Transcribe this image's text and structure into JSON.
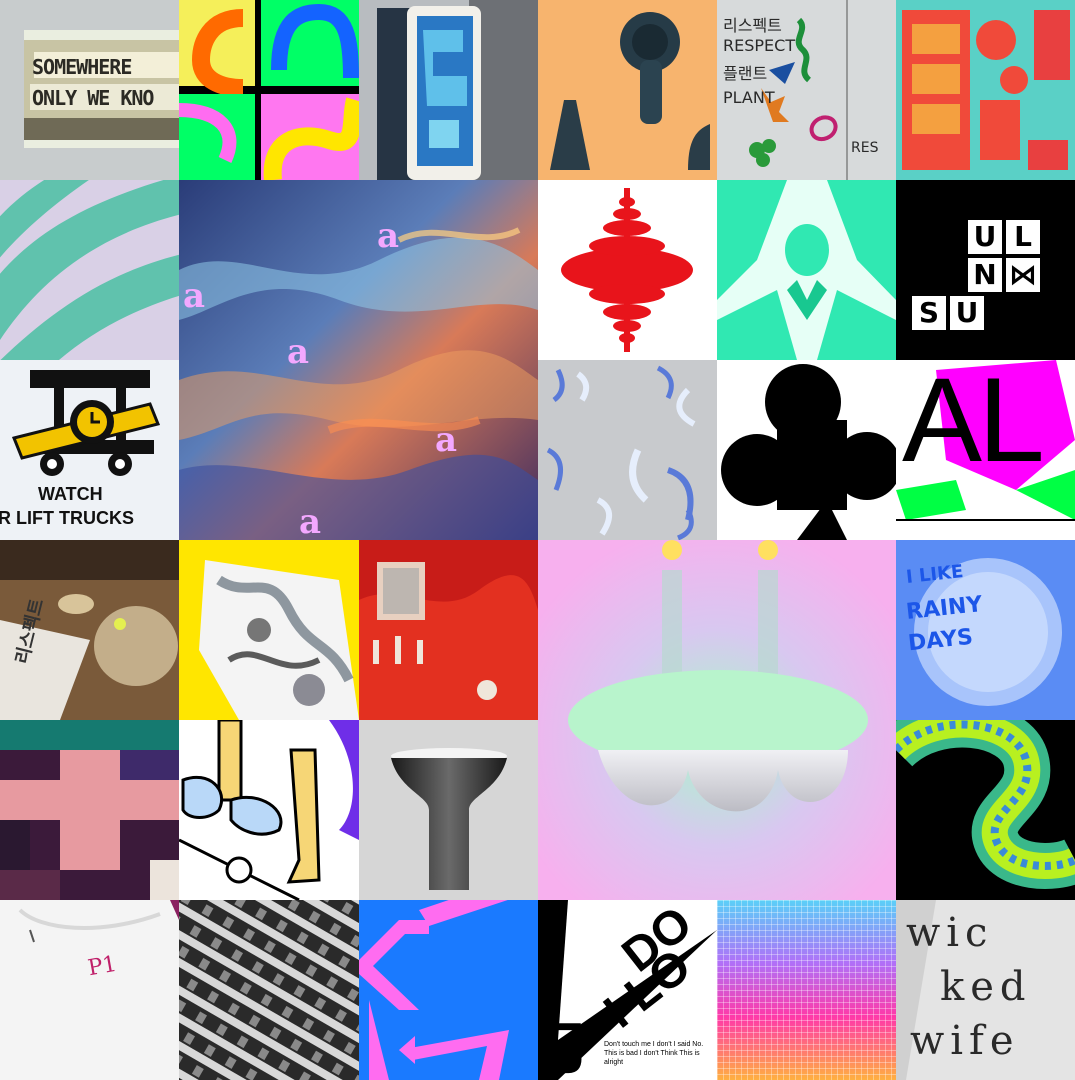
{
  "tiles": {
    "somewhere": {
      "line1": "SOMEWHERE",
      "line2": "ONLY WE KNO"
    },
    "respect_poster": {
      "l1": "리스펙트",
      "l2": "RESPECT",
      "l3": "플랜트",
      "l4": "PLANT",
      "side": "리스펙트 플랜트",
      "small": "RES"
    },
    "ulnmsu": {
      "c1": "U",
      "c2": "L",
      "c3": "N",
      "c4": "⋈",
      "c5": "S",
      "c6": "U"
    },
    "watch": {
      "line1": "WATCH",
      "line2": "R LIFT TRUCKS"
    },
    "al": {
      "text": "AL"
    },
    "book": {
      "text": "리스펙트"
    },
    "rainy": {
      "l1": "I LIKE",
      "l2": "RAINY",
      "l3": "DAYS"
    },
    "tshirt": {
      "text": "P1"
    },
    "dont": {
      "l1": "DO",
      "l2": "I LO",
      "l3": "UT",
      "body": "Don't touch me I don't I said No. This is bad I don't Think This is alright"
    },
    "wicked": {
      "l1": "wic",
      "l2": "ked",
      "l3": "wife"
    },
    "glass_letter": "a"
  },
  "colors": {
    "magenta": "#ff00ff",
    "green": "#00ff66",
    "blue": "#0077ff",
    "red": "#e8141b",
    "yellow": "#ffe600",
    "pink": "#ff77f0"
  }
}
